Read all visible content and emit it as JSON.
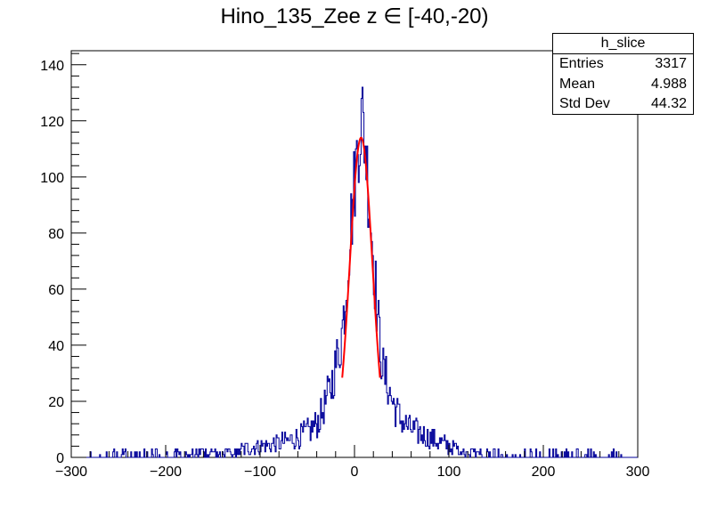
{
  "colors": {
    "histogram": "#000099",
    "fit": "#ff0000",
    "axis": "#000000",
    "background": "#ffffff"
  },
  "chart_data": {
    "type": "histogram",
    "title": "Hino_135_Zee z  ∈ [-40,-20)",
    "xlabel": "",
    "ylabel": "",
    "xlim": [
      -300,
      300
    ],
    "ylim": [
      0,
      145
    ],
    "grid": false,
    "x_ticks": [
      "−300",
      "−200",
      "−100",
      "0",
      "100",
      "200",
      "300"
    ],
    "y_ticks": [
      "0",
      "20",
      "40",
      "60",
      "80",
      "100",
      "120",
      "140"
    ],
    "legend": "top-right stats box",
    "stats": {
      "name": "h_slice",
      "rows": [
        {
          "label": "Entries",
          "value": "3317"
        },
        {
          "label": "Mean",
          "value": "4.988"
        },
        {
          "label": "Std Dev",
          "value": "44.32"
        }
      ]
    },
    "bin_width": 1,
    "histogram_profile": [
      [
        -300,
        0
      ],
      [
        -250,
        1
      ],
      [
        -200,
        1
      ],
      [
        -150,
        2
      ],
      [
        -120,
        3
      ],
      [
        -100,
        4
      ],
      [
        -80,
        5
      ],
      [
        -60,
        7
      ],
      [
        -45,
        10
      ],
      [
        -35,
        15
      ],
      [
        -25,
        25
      ],
      [
        -15,
        40
      ],
      [
        -10,
        55
      ],
      [
        -5,
        78
      ],
      [
        0,
        98
      ],
      [
        5,
        116
      ],
      [
        8,
        122
      ],
      [
        12,
        110
      ],
      [
        16,
        90
      ],
      [
        20,
        72
      ],
      [
        25,
        48
      ],
      [
        30,
        32
      ],
      [
        40,
        20
      ],
      [
        50,
        13
      ],
      [
        60,
        10
      ],
      [
        80,
        7
      ],
      [
        100,
        4
      ],
      [
        120,
        2
      ],
      [
        150,
        1
      ],
      [
        200,
        1
      ],
      [
        250,
        1
      ],
      [
        300,
        0
      ]
    ],
    "fit": {
      "type": "gaussian",
      "amplitude": 114,
      "mean": 7,
      "sigma": 12,
      "range": [
        -13,
        27
      ]
    }
  }
}
